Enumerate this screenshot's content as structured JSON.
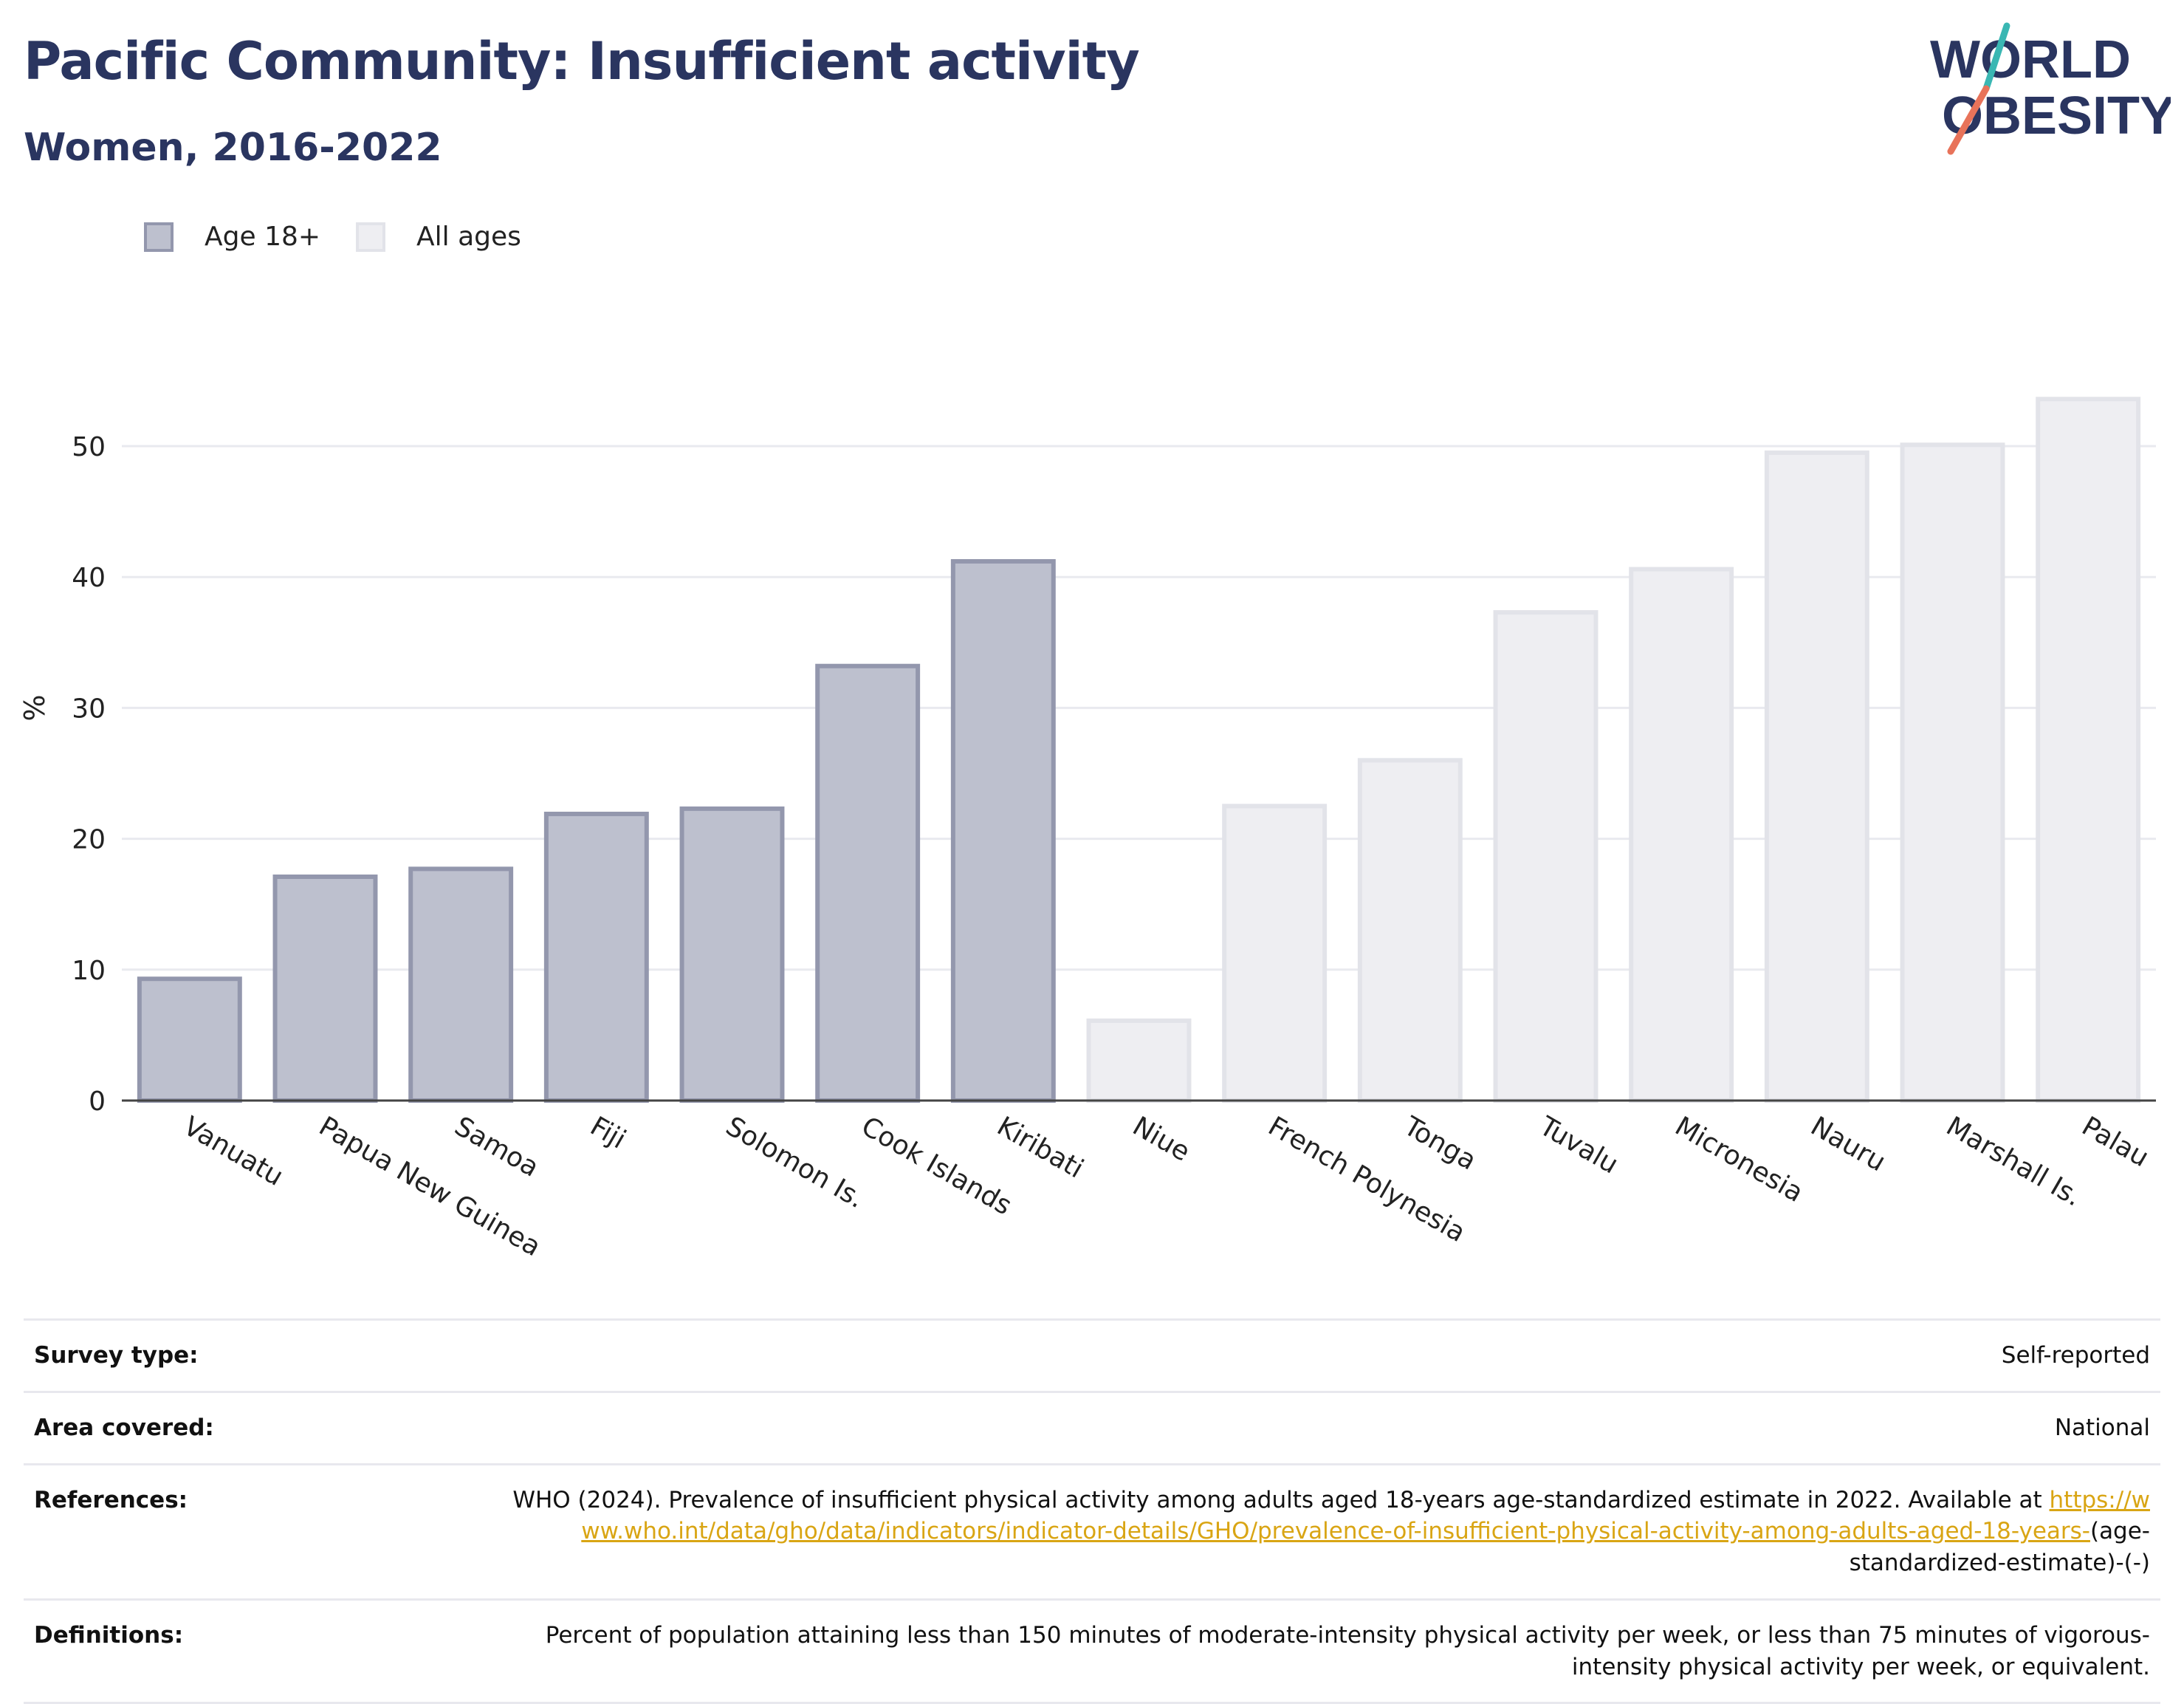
{
  "header": {
    "title": "Pacific Community: Insufficient activity",
    "subtitle": "Women, 2016-2022"
  },
  "logo": {
    "line1": "WORLD",
    "line2": "OBESITY",
    "brand_color": "#2a3560",
    "slash_teal": "#3ab7b3",
    "slash_coral": "#e8735a"
  },
  "legend": [
    {
      "label": "Age 18+",
      "fill": "#bdc0ce",
      "stroke": "#9397ad"
    },
    {
      "label": "All ages",
      "fill": "#eeeef2",
      "stroke": "#e2e3e9"
    }
  ],
  "chart_data": {
    "type": "bar",
    "title": "Pacific Community: Insufficient activity",
    "subtitle": "Women, 2016-2022",
    "ylabel": "%",
    "xlabel": "",
    "ylim": [
      0,
      57
    ],
    "yticks": [
      0,
      10,
      20,
      30,
      40,
      50
    ],
    "grid": true,
    "legend_position": "top-left",
    "categories": [
      "Vanuatu",
      "Papua New Guinea",
      "Samoa",
      "Fiji",
      "Solomon Is.",
      "Cook Islands",
      "Kiribati",
      "Niue",
      "French Polynesia",
      "Tonga",
      "Tuvalu",
      "Micronesia",
      "Nauru",
      "Marshall Is.",
      "Palau"
    ],
    "values": [
      9.3,
      17.1,
      17.7,
      21.9,
      22.3,
      33.2,
      41.2,
      6.1,
      22.5,
      26.0,
      37.3,
      40.6,
      49.5,
      50.1,
      53.6
    ],
    "groups": [
      "Age 18+",
      "Age 18+",
      "Age 18+",
      "Age 18+",
      "Age 18+",
      "Age 18+",
      "Age 18+",
      "All ages",
      "All ages",
      "All ages",
      "All ages",
      "All ages",
      "All ages",
      "All ages",
      "All ages"
    ]
  },
  "info": [
    {
      "label": "Survey type:",
      "value": "Self-reported"
    },
    {
      "label": "Area covered:",
      "value": "National"
    },
    {
      "label": "References:",
      "value_pre": "WHO (2024). Prevalence of insufficient physical activity among adults aged 18-years age-standardized estimate in 2022. Available at ",
      "link": "https://www.who.int/data/gho/data/indicators/indicator-details/GHO/prevalence-of-insufficient-physical-activity-among-adults-aged-18-years-",
      "value_post": "(age-standardized-estimate)-(-)"
    },
    {
      "label": "Definitions:",
      "value": "Percent of population attaining less than 150 minutes of moderate-intensity physical activity per week, or less than 75 minutes of vigorous-intensity physical activity per week, or equivalent."
    }
  ]
}
